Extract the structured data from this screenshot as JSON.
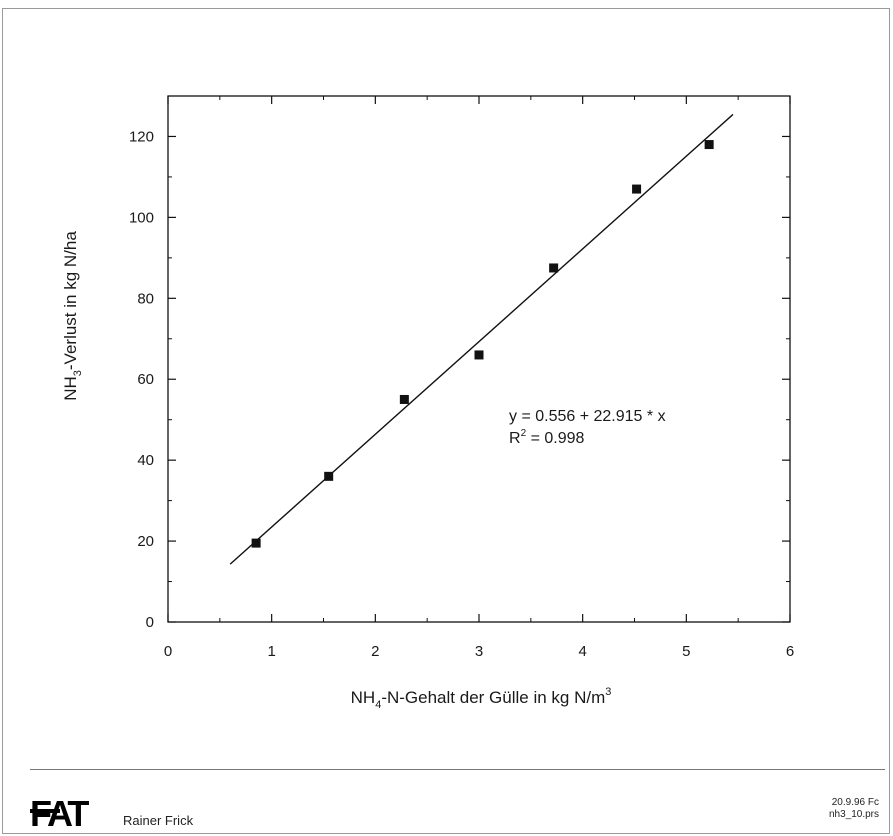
{
  "chart_data": {
    "type": "scatter",
    "xlabel": {
      "main": "NH",
      "sub": "4",
      "rest": "-N-Gehalt der Gülle in kg N/m",
      "sup": "3"
    },
    "ylabel": {
      "main": "NH",
      "sub": "3",
      "rest": "-Verlust in kg N/ha"
    },
    "xlim": [
      0,
      6
    ],
    "ylim": [
      0,
      130
    ],
    "xticks": [
      0,
      1,
      2,
      3,
      4,
      5,
      6
    ],
    "yticks": [
      0,
      20,
      40,
      60,
      80,
      100,
      120
    ],
    "grid": false,
    "series": [
      {
        "marker": "square",
        "color": "#111111",
        "points": [
          {
            "x": 0.85,
            "y": 19.5
          },
          {
            "x": 1.55,
            "y": 36
          },
          {
            "x": 2.28,
            "y": 55
          },
          {
            "x": 3.0,
            "y": 66
          },
          {
            "x": 3.72,
            "y": 87.5
          },
          {
            "x": 4.52,
            "y": 107
          },
          {
            "x": 5.22,
            "y": 118
          }
        ]
      }
    ],
    "regression": {
      "intercept": 0.556,
      "slope": 22.915,
      "x_range": [
        0.6,
        5.45
      ]
    },
    "annotation": {
      "equation": "y = 0.556 + 22.915 * x",
      "r2_main": "R",
      "r2_sup": "2",
      "r2_rest": " = 0.998"
    }
  },
  "footer": {
    "logo_text": "FAT",
    "author": "Rainer Frick",
    "date": "20.9.96 Fc",
    "file": "nh3_10.prs"
  }
}
